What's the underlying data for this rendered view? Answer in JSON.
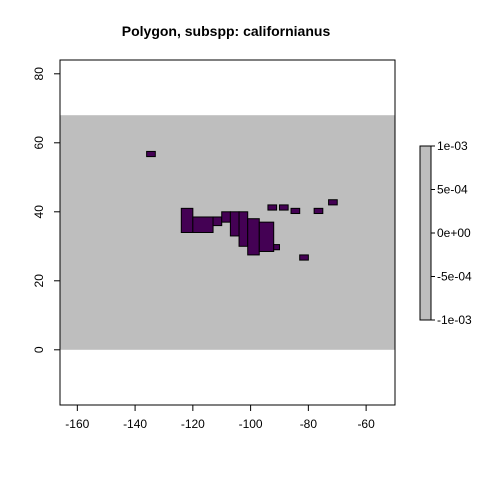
{
  "chart_data": {
    "type": "heatmap",
    "title": "Polygon, subspp: californianus",
    "xlabel": "",
    "ylabel": "",
    "xlim": [
      -166,
      -50
    ],
    "ylim": [
      -16,
      84
    ],
    "x_ticks": [
      -160,
      -140,
      -120,
      -100,
      -80,
      -60
    ],
    "y_ticks": [
      0,
      20,
      40,
      60,
      80
    ],
    "x_tick_labels": [
      "-160",
      "-140",
      "-120",
      "-100",
      "-80",
      "-60"
    ],
    "y_tick_labels": [
      "0",
      "20",
      "40",
      "60",
      "80"
    ],
    "raster_extent": {
      "x": [
        -166,
        -50
      ],
      "y": [
        0,
        68
      ]
    },
    "grid": false,
    "colors": {
      "background_cells": "#bebebe",
      "presence_cells": "#440154",
      "outline": "#000000"
    },
    "presence_cells": [
      [
        -136,
        -133,
        56,
        57.5
      ],
      [
        -124,
        -120,
        34,
        41
      ],
      [
        -120,
        -113,
        34,
        38.5
      ],
      [
        -113,
        -110,
        36,
        38.5
      ],
      [
        -110,
        -107,
        37,
        40
      ],
      [
        -107,
        -104,
        33,
        40
      ],
      [
        -104,
        -101,
        30,
        40
      ],
      [
        -101,
        -97,
        27.5,
        38
      ],
      [
        -97,
        -92,
        28.5,
        37
      ],
      [
        -92,
        -90,
        29,
        30.5
      ],
      [
        -94,
        -91,
        40.5,
        42
      ],
      [
        -90,
        -87,
        40.5,
        42
      ],
      [
        -86,
        -83,
        39.5,
        41
      ],
      [
        -83,
        -80,
        26,
        27.5
      ],
      [
        -78,
        -75,
        39.5,
        41
      ],
      [
        -73,
        -70,
        42,
        43.5
      ]
    ],
    "legend": {
      "position": "right",
      "ticks": [
        "1e-03",
        "5e-04",
        "0e+00",
        "-5e-04",
        "-1e-03"
      ]
    }
  }
}
